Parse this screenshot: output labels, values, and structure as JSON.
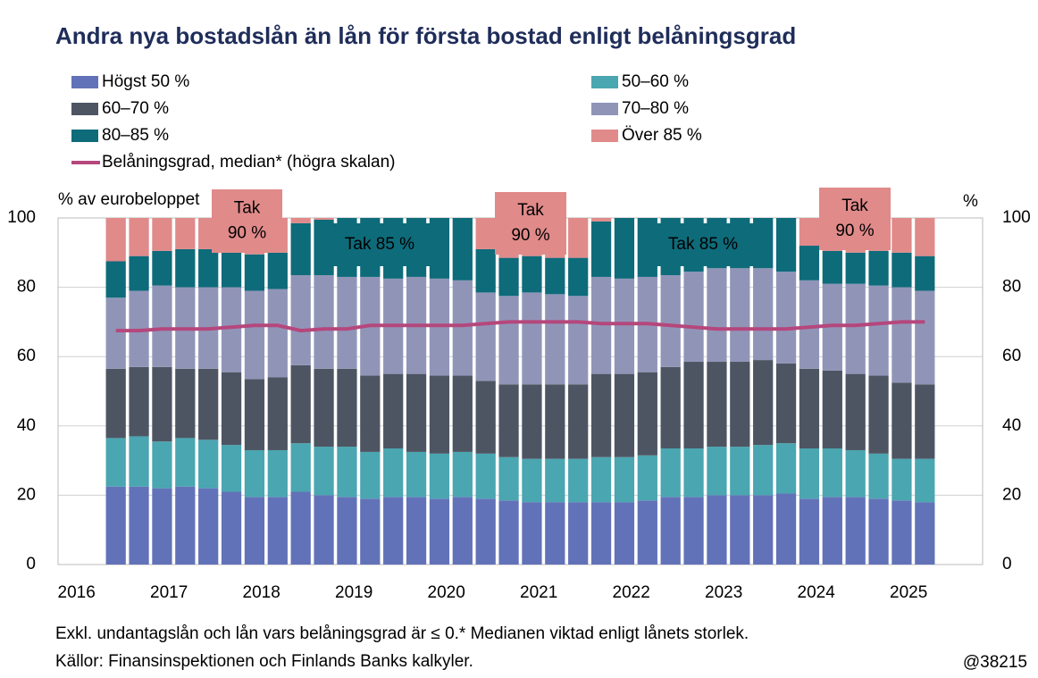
{
  "chart_data": {
    "type": "stacked-bar-line",
    "title": "Andra nya bostadslån än lån för första bostad enligt belåningsgrad",
    "y_label": "% av eurobeloppet",
    "y2_label": "%",
    "categories": [
      "2016",
      null,
      null,
      null,
      "2017",
      null,
      null,
      null,
      "2018",
      null,
      null,
      null,
      "2019",
      null,
      null,
      null,
      "2020",
      null,
      null,
      null,
      "2021",
      null,
      null,
      null,
      "2022",
      null,
      null,
      null,
      "2023",
      null,
      null,
      null,
      "2024",
      null,
      null,
      null,
      "2025",
      null,
      null,
      null
    ],
    "ylim": [
      0,
      100
    ],
    "yticks": [
      0,
      20,
      40,
      60,
      80,
      100
    ],
    "y2lim": [
      0,
      100
    ],
    "y2ticks": [
      0,
      20,
      40,
      60,
      80,
      100
    ],
    "grid": true,
    "series": [
      {
        "name": "Högst 50 %",
        "color": "#6272b8",
        "values": [
          null,
          null,
          22.5,
          22.5,
          22,
          22.5,
          22,
          21,
          19.5,
          19.5,
          21,
          20,
          19.5,
          19,
          19.5,
          19.5,
          19,
          19.5,
          19,
          18.5,
          18,
          18,
          18,
          18,
          18,
          18.5,
          19.5,
          19.5,
          20,
          20,
          20,
          20.5,
          19,
          19.5,
          19.5,
          19,
          18.5,
          18,
          null,
          null
        ]
      },
      {
        "name": "50–60 %",
        "color": "#4aa6b0",
        "values": [
          null,
          null,
          14,
          14.5,
          13.5,
          14,
          14,
          13.5,
          13.5,
          13.5,
          14,
          14,
          14.5,
          13.5,
          14,
          13,
          13,
          13,
          13,
          12.5,
          12.5,
          12.5,
          12.5,
          13,
          13,
          13,
          14,
          14,
          14,
          14,
          14.5,
          14.5,
          14.5,
          14,
          13.5,
          13,
          12,
          12.5,
          null,
          null
        ]
      },
      {
        "name": "60–70 %",
        "color": "#4d5563",
        "values": [
          null,
          null,
          20,
          20,
          21.5,
          20,
          20.5,
          21,
          20.5,
          21,
          22.5,
          22.5,
          22.5,
          22,
          21.5,
          22.5,
          22.5,
          22,
          21,
          21,
          21.5,
          21.5,
          21.5,
          24,
          24,
          24,
          23.5,
          25,
          24.5,
          24.5,
          24.5,
          23,
          23,
          22.5,
          22,
          22.5,
          22,
          21.5,
          null,
          null
        ]
      },
      {
        "name": "70–80 %",
        "color": "#9095b8",
        "values": [
          null,
          null,
          20.5,
          22,
          23.5,
          23.5,
          23.5,
          24.5,
          25.5,
          25.5,
          26,
          27,
          26.5,
          28.5,
          27.5,
          28,
          28,
          27.5,
          25.5,
          25.5,
          26.5,
          26,
          25.5,
          28,
          27.5,
          27.5,
          26.5,
          26,
          27,
          27,
          26.5,
          26.5,
          25.5,
          25,
          26,
          26,
          27.5,
          27,
          null,
          null
        ]
      },
      {
        "name": "80–85 %",
        "color": "#0e6b7a",
        "values": [
          null,
          null,
          10.5,
          10,
          10,
          11,
          11,
          10,
          10.5,
          10.5,
          15,
          16,
          17,
          17,
          17.5,
          17,
          17.5,
          18,
          12.5,
          11,
          10.5,
          10.5,
          11,
          16,
          17.5,
          17,
          16.5,
          15.5,
          14.5,
          14.5,
          14.5,
          15.5,
          10,
          9.5,
          9,
          10,
          10,
          10,
          null,
          null
        ]
      },
      {
        "name": "Över 85 %",
        "color": "#e08a8a",
        "values": [
          null,
          null,
          12.5,
          11,
          9.5,
          9,
          9,
          10,
          10.5,
          10,
          1.5,
          0.5,
          0,
          0,
          0,
          0,
          0,
          0,
          9,
          11.5,
          11,
          11.5,
          11.5,
          1,
          0,
          0,
          0,
          0,
          0,
          0,
          0,
          0,
          8,
          9.5,
          10,
          9.5,
          10,
          11,
          null,
          null
        ]
      },
      {
        "name": "Belåningsgrad, median* (högra skalan)",
        "color": "#b5477c",
        "axis": "y2",
        "values": [
          null,
          null,
          67.5,
          67.5,
          68,
          68,
          68,
          68.5,
          69,
          69,
          67.5,
          68,
          68,
          69,
          69,
          69,
          69,
          69,
          69.5,
          70,
          70,
          70,
          70,
          69.5,
          69.5,
          69.5,
          69,
          68.5,
          68,
          68,
          68,
          68,
          68.5,
          69,
          69,
          69.5,
          70,
          70,
          null,
          null
        ]
      }
    ],
    "annotations": [
      {
        "lines": [
          "Tak",
          "90 %"
        ],
        "color": "#e08a8a"
      },
      {
        "lines": [
          "Tak 85 %"
        ],
        "color": "#0e6b7a"
      },
      {
        "lines": [
          "Tak",
          "90 %"
        ],
        "color": "#e08a8a"
      },
      {
        "lines": [
          "Tak 85 %"
        ],
        "color": "#0e6b7a"
      },
      {
        "lines": [
          "Tak",
          "90 %"
        ],
        "color": "#e08a8a"
      }
    ],
    "notes": [
      "Exkl. undantagslån och lån vars belåningsgrad är ≤ 0.* Medianen viktad enligt lånets storlek.",
      "Källor: Finansinspektionen och Finlands Banks kalkyler."
    ],
    "code": "@38215"
  }
}
